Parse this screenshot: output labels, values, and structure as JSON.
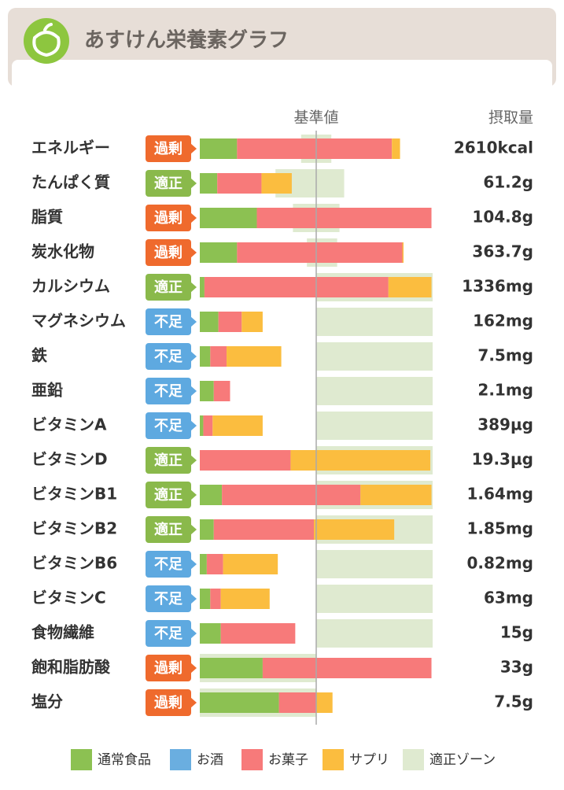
{
  "chart_data": {
    "type": "stacked-bar-horizontal",
    "title": "あすけん栄養素グラフ",
    "reference": {
      "value": 100,
      "label": "基準値"
    },
    "intake_header": "摂取量",
    "xlim": [
      0,
      200
    ],
    "categories": [
      "エネルギー",
      "たんぱく質",
      "脂質",
      "炭水化物",
      "カルシウム",
      "マグネシウム",
      "鉄",
      "亜鉛",
      "ビタミンA",
      "ビタミンD",
      "ビタミンB1",
      "ビタミンB2",
      "ビタミンB6",
      "ビタミンC",
      "食物繊維",
      "飽和脂肪酸",
      "塩分"
    ],
    "status": [
      "過剰",
      "適正",
      "過剰",
      "過剰",
      "適正",
      "不足",
      "不足",
      "不足",
      "不足",
      "適正",
      "適正",
      "適正",
      "不足",
      "不足",
      "不足",
      "過剰",
      "過剰"
    ],
    "status_colors": [
      "#ef6a2d",
      "#8ab94b",
      "#ef6a2d",
      "#ef6a2d",
      "#8ab94b",
      "#5ea9e0",
      "#5ea9e0",
      "#5ea9e0",
      "#5ea9e0",
      "#8ab94b",
      "#8ab94b",
      "#8ab94b",
      "#5ea9e0",
      "#5ea9e0",
      "#5ea9e0",
      "#ef6a2d",
      "#ef6a2d"
    ],
    "intake": [
      "2610kcal",
      "61.2g",
      "104.8g",
      "363.7g",
      "1336mg",
      "162mg",
      "7.5mg",
      "2.1mg",
      "389µg",
      "19.3µg",
      "1.64mg",
      "1.85mg",
      "0.82mg",
      "63mg",
      "15g",
      "33g",
      "7.5g"
    ],
    "series": [
      {
        "name": "通常食品",
        "color": "#8cc152",
        "values": [
          32,
          15,
          49,
          32,
          4,
          16,
          9,
          12,
          3,
          0,
          19,
          12,
          6,
          9,
          18,
          54,
          68
        ]
      },
      {
        "name": "お酒",
        "color": "#6aaee0",
        "values": [
          0,
          0,
          0,
          0,
          0,
          0,
          0,
          0,
          0,
          0,
          0,
          0,
          0,
          0,
          0,
          0,
          0
        ]
      },
      {
        "name": "お菓子",
        "color": "#f77a7a",
        "values": [
          133,
          38,
          150,
          142,
          158,
          20,
          14,
          14,
          8,
          78,
          119,
          86,
          14,
          9,
          64,
          145,
          32
        ]
      },
      {
        "name": "サプリ",
        "color": "#fbbd3f",
        "values": [
          7,
          26,
          0,
          1,
          37,
          18,
          47,
          0,
          43,
          120,
          61,
          69,
          47,
          42,
          0,
          0,
          14
        ]
      }
    ],
    "zone": {
      "name": "適正ゾーン",
      "color": "#dfead0",
      "ranges": [
        [
          87,
          113
        ],
        [
          65,
          124
        ],
        [
          80,
          120
        ],
        [
          92,
          118
        ],
        [
          100,
          200
        ],
        [
          100,
          200
        ],
        [
          100,
          200
        ],
        [
          100,
          200
        ],
        [
          100,
          200
        ],
        [
          100,
          200
        ],
        [
          100,
          200
        ],
        [
          100,
          200
        ],
        [
          100,
          200
        ],
        [
          100,
          200
        ],
        [
          100,
          200
        ],
        [
          0,
          100
        ],
        [
          0,
          100
        ]
      ]
    }
  }
}
